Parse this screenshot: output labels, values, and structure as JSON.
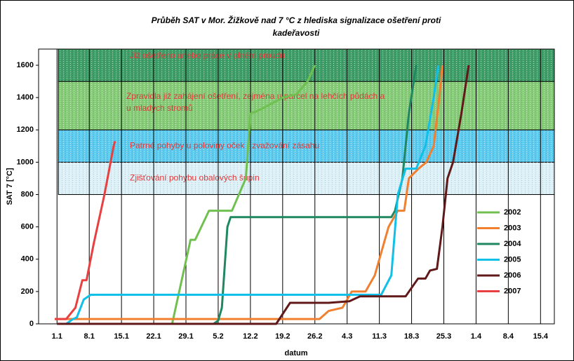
{
  "chart_data": {
    "type": "line",
    "title": "Průběh SAT v Mor. Žižkově nad 7 °C z hlediska signalizace ošetření proti",
    "subtitle": "kadeřavosti",
    "ylabel": "SAT 7 [°C]",
    "xlabel": "datum",
    "xlim": [
      -4,
      108
    ],
    "ylim": [
      0,
      1700
    ],
    "xticks": [
      {
        "value": 0,
        "label": "1.1"
      },
      {
        "value": 7,
        "label": "8.1"
      },
      {
        "value": 14,
        "label": "15.1"
      },
      {
        "value": 21,
        "label": "22.1"
      },
      {
        "value": 28,
        "label": "29.1"
      },
      {
        "value": 35,
        "label": "5.2"
      },
      {
        "value": 42,
        "label": "12.2"
      },
      {
        "value": 49,
        "label": "19.2"
      },
      {
        "value": 56,
        "label": "26.2"
      },
      {
        "value": 63,
        "label": "4.3"
      },
      {
        "value": 70,
        "label": "11.3"
      },
      {
        "value": 77,
        "label": "18.3"
      },
      {
        "value": 84,
        "label": "25.3"
      },
      {
        "value": 91,
        "label": "1.4"
      },
      {
        "value": 98,
        "label": "8.4"
      },
      {
        "value": 105,
        "label": "15.4"
      }
    ],
    "yticks": [
      0,
      200,
      400,
      600,
      800,
      1000,
      1200,
      1400,
      1600
    ],
    "bands": [
      {
        "from": 800,
        "to": 1000,
        "label": "Zjišťování pohybu obalových šupin",
        "color": "#dcf0f8"
      },
      {
        "from": 1000,
        "to": 1200,
        "label": "Patrné pohyby u poloviny oček - zvažování zásahu",
        "color": "#5ccbef"
      },
      {
        "from": 1200,
        "to": 1500,
        "label": "Zpravidla již zahájení ošetření, zejména u parcel na lehčích půdách a u mladých stromů",
        "color": "#86cc78"
      },
      {
        "from": 1500,
        "to": 1700,
        "label": "Již ošetřeno anebo práce v plném proudu",
        "color": "#3f9e68"
      }
    ],
    "series": [
      {
        "name": "2002",
        "color": "#70c050",
        "x": [
          0,
          25,
          29,
          30,
          33,
          38,
          41,
          42,
          44.5,
          49,
          52,
          54.4,
          56
        ],
        "values": [
          0,
          0,
          520,
          520,
          700,
          700,
          900,
          1300,
          1330,
          1400,
          1420,
          1500,
          1600
        ]
      },
      {
        "name": "2003",
        "color": "#f08030",
        "x": [
          -0.5,
          57,
          59,
          62,
          64,
          67,
          69,
          72,
          74,
          75.4,
          76.4,
          78.5,
          80.2,
          81.8,
          83,
          83.7
        ],
        "values": [
          30,
          30,
          80,
          100,
          200,
          200,
          300,
          600,
          700,
          700,
          900,
          960,
          1000,
          1100,
          1400,
          1600
        ]
      },
      {
        "name": "2004",
        "color": "#208860",
        "x": [
          0,
          34,
          35,
          35.8,
          37,
          37.7,
          72.6,
          73.4,
          75,
          76.4,
          78
        ],
        "values": [
          0,
          0,
          20,
          100,
          600,
          660,
          660,
          700,
          900,
          1300,
          1600
        ]
      },
      {
        "name": "2005",
        "color": "#10c0e8",
        "x": [
          0,
          2,
          3.5,
          4.3,
          5.8,
          7.3,
          70.4,
          72.6,
          74,
          75.7,
          78,
          80,
          81.8,
          82.8
        ],
        "values": [
          0,
          0,
          30,
          40,
          150,
          180,
          180,
          300,
          800,
          960,
          960,
          1100,
          1400,
          1600
        ]
      },
      {
        "name": "2006",
        "color": "#601818",
        "x": [
          0,
          47.6,
          50.6,
          59,
          63.5,
          65.8,
          75.7,
          78.4,
          80,
          81,
          82.5,
          83.7,
          84.8,
          86,
          87.8,
          89.4
        ],
        "values": [
          0,
          0,
          130,
          130,
          140,
          170,
          170,
          280,
          280,
          330,
          340,
          600,
          900,
          1000,
          1300,
          1600
        ]
      },
      {
        "name": "2007",
        "color": "#e84040",
        "x": [
          -0.5,
          2,
          4,
          5.5,
          6.4,
          8,
          10.3,
          12.3,
          12.6
        ],
        "values": [
          30,
          30,
          100,
          270,
          270,
          500,
          800,
          1100,
          1130
        ]
      }
    ]
  }
}
